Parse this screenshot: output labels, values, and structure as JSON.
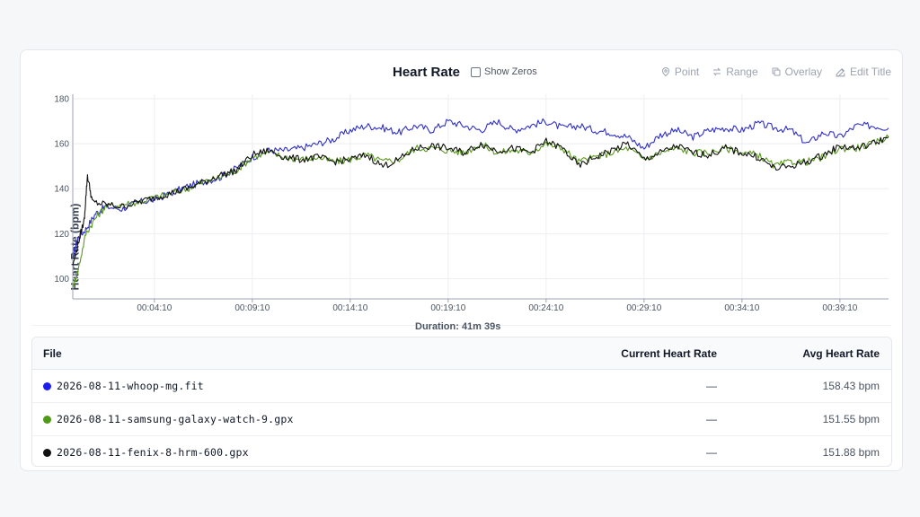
{
  "header": {
    "title": "Heart Rate",
    "show_zeros_label": "Show Zeros",
    "tools": [
      {
        "label": "Point",
        "icon": "map-pin-icon"
      },
      {
        "label": "Range",
        "icon": "arrows-swap-icon"
      },
      {
        "label": "Overlay",
        "icon": "copy-icon"
      },
      {
        "label": "Edit Title",
        "icon": "edit-icon"
      }
    ]
  },
  "duration_label": "Duration: 41m 39s",
  "chart_data": {
    "type": "line",
    "ylabel": "Heart Rate (bpm)",
    "ylim": [
      91,
      182
    ],
    "yticks": [
      100,
      120,
      140,
      160,
      180
    ],
    "x_range_s": [
      0,
      2499
    ],
    "xticks": [
      "00:04:10",
      "00:09:10",
      "00:14:10",
      "00:19:10",
      "00:24:10",
      "00:29:10",
      "00:34:10",
      "00:39:10"
    ],
    "grid": true,
    "series": [
      {
        "name": "2026-08-11-whoop-mg.fit",
        "color": "#3030c8",
        "points": [
          [
            0,
            109
          ],
          [
            15,
            118
          ],
          [
            40,
            122
          ],
          [
            70,
            129
          ],
          [
            100,
            132
          ],
          [
            150,
            131
          ],
          [
            200,
            134
          ],
          [
            250,
            135
          ],
          [
            300,
            138
          ],
          [
            350,
            141
          ],
          [
            400,
            143
          ],
          [
            450,
            145
          ],
          [
            500,
            149
          ],
          [
            550,
            154
          ],
          [
            600,
            157
          ],
          [
            650,
            157
          ],
          [
            700,
            158
          ],
          [
            750,
            160
          ],
          [
            800,
            162
          ],
          [
            850,
            166
          ],
          [
            900,
            168
          ],
          [
            950,
            167
          ],
          [
            1000,
            165
          ],
          [
            1050,
            168
          ],
          [
            1100,
            166
          ],
          [
            1150,
            170
          ],
          [
            1200,
            168
          ],
          [
            1250,
            166
          ],
          [
            1300,
            170
          ],
          [
            1350,
            166
          ],
          [
            1400,
            168
          ],
          [
            1450,
            170
          ],
          [
            1500,
            167
          ],
          [
            1550,
            168
          ],
          [
            1600,
            166
          ],
          [
            1650,
            165
          ],
          [
            1700,
            163
          ],
          [
            1750,
            158
          ],
          [
            1800,
            164
          ],
          [
            1850,
            166
          ],
          [
            1900,
            163
          ],
          [
            1950,
            166
          ],
          [
            2000,
            167
          ],
          [
            2050,
            166
          ],
          [
            2100,
            169
          ],
          [
            2150,
            167
          ],
          [
            2200,
            166
          ],
          [
            2250,
            160
          ],
          [
            2300,
            165
          ],
          [
            2350,
            163
          ],
          [
            2400,
            168
          ],
          [
            2450,
            168
          ],
          [
            2499,
            167
          ]
        ]
      },
      {
        "name": "2026-08-11-samsung-galaxy-watch-9.gpx",
        "color": "#5a9a1c",
        "points": [
          [
            0,
            96
          ],
          [
            15,
            103
          ],
          [
            40,
            120
          ],
          [
            70,
            127
          ],
          [
            100,
            132
          ],
          [
            150,
            133
          ],
          [
            200,
            134
          ],
          [
            250,
            136
          ],
          [
            300,
            138
          ],
          [
            350,
            140
          ],
          [
            400,
            143
          ],
          [
            450,
            145
          ],
          [
            500,
            148
          ],
          [
            550,
            154
          ],
          [
            600,
            156
          ],
          [
            650,
            154
          ],
          [
            700,
            153
          ],
          [
            750,
            154
          ],
          [
            800,
            152
          ],
          [
            850,
            153
          ],
          [
            900,
            155
          ],
          [
            950,
            152
          ],
          [
            1000,
            153
          ],
          [
            1050,
            158
          ],
          [
            1100,
            158
          ],
          [
            1150,
            157
          ],
          [
            1200,
            156
          ],
          [
            1250,
            160
          ],
          [
            1300,
            156
          ],
          [
            1350,
            157
          ],
          [
            1400,
            156
          ],
          [
            1450,
            160
          ],
          [
            1500,
            158
          ],
          [
            1550,
            152
          ],
          [
            1600,
            154
          ],
          [
            1650,
            156
          ],
          [
            1700,
            158
          ],
          [
            1750,
            153
          ],
          [
            1800,
            156
          ],
          [
            1850,
            158
          ],
          [
            1900,
            156
          ],
          [
            1950,
            156
          ],
          [
            2000,
            158
          ],
          [
            2050,
            156
          ],
          [
            2100,
            155
          ],
          [
            2150,
            150
          ],
          [
            2200,
            152
          ],
          [
            2250,
            152
          ],
          [
            2300,
            154
          ],
          [
            2350,
            158
          ],
          [
            2400,
            158
          ],
          [
            2450,
            160
          ],
          [
            2499,
            163
          ]
        ]
      },
      {
        "name": "2026-08-11-fenix-8-hrm-600.gpx",
        "color": "#111111",
        "points": [
          [
            0,
            106
          ],
          [
            15,
            115
          ],
          [
            35,
            126
          ],
          [
            45,
            146
          ],
          [
            60,
            134
          ],
          [
            100,
            133
          ],
          [
            150,
            132
          ],
          [
            200,
            134
          ],
          [
            250,
            136
          ],
          [
            300,
            138
          ],
          [
            350,
            140
          ],
          [
            400,
            143
          ],
          [
            450,
            146
          ],
          [
            500,
            148
          ],
          [
            550,
            155
          ],
          [
            600,
            157
          ],
          [
            650,
            154
          ],
          [
            700,
            153
          ],
          [
            750,
            154
          ],
          [
            800,
            152
          ],
          [
            850,
            153
          ],
          [
            900,
            155
          ],
          [
            950,
            150
          ],
          [
            1000,
            153
          ],
          [
            1050,
            158
          ],
          [
            1100,
            159
          ],
          [
            1150,
            158
          ],
          [
            1200,
            156
          ],
          [
            1250,
            160
          ],
          [
            1300,
            157
          ],
          [
            1350,
            158
          ],
          [
            1400,
            156
          ],
          [
            1450,
            161
          ],
          [
            1500,
            158
          ],
          [
            1550,
            150
          ],
          [
            1600,
            154
          ],
          [
            1650,
            157
          ],
          [
            1700,
            160
          ],
          [
            1750,
            153
          ],
          [
            1800,
            156
          ],
          [
            1850,
            159
          ],
          [
            1900,
            156
          ],
          [
            1950,
            155
          ],
          [
            2000,
            158
          ],
          [
            2050,
            156
          ],
          [
            2100,
            154
          ],
          [
            2150,
            149
          ],
          [
            2200,
            150
          ],
          [
            2250,
            152
          ],
          [
            2300,
            155
          ],
          [
            2350,
            159
          ],
          [
            2400,
            158
          ],
          [
            2450,
            160
          ],
          [
            2499,
            163
          ]
        ]
      }
    ]
  },
  "table": {
    "headers": {
      "file": "File",
      "current": "Current Heart Rate",
      "avg": "Avg Heart Rate"
    },
    "rows": [
      {
        "file": "2026-08-11-whoop-mg.fit",
        "color": "#1d1df0",
        "current": "—",
        "avg": "158.43 bpm"
      },
      {
        "file": "2026-08-11-samsung-galaxy-watch-9.gpx",
        "color": "#4d9a16",
        "current": "—",
        "avg": "151.55 bpm"
      },
      {
        "file": "2026-08-11-fenix-8-hrm-600.gpx",
        "color": "#111111",
        "current": "—",
        "avg": "151.88 bpm"
      }
    ]
  }
}
